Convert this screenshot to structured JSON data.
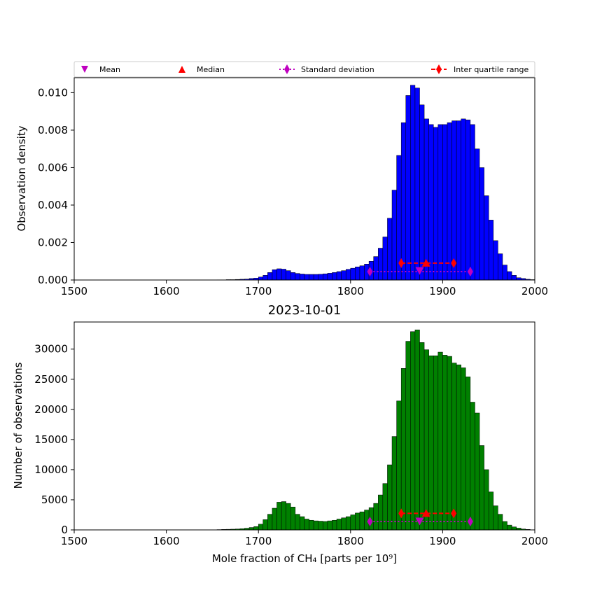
{
  "chart_data": [
    {
      "type": "bar",
      "title": "",
      "xlabel": "",
      "ylabel": "Observation density",
      "xlim": [
        1500,
        2000
      ],
      "ylim": [
        0,
        0.0108
      ],
      "xticks": [
        "1500",
        "1600",
        "1700",
        "1800",
        "1900",
        "2000"
      ],
      "yticks": [
        "0.000",
        "0.002",
        "0.004",
        "0.006",
        "0.008",
        "0.010"
      ],
      "ytick_values": [
        0,
        0.002,
        0.004,
        0.006,
        0.008,
        0.01
      ],
      "bar_color": "#0000ff",
      "bin_width": 5,
      "x": [
        1655,
        1660,
        1665,
        1670,
        1675,
        1680,
        1685,
        1690,
        1695,
        1700,
        1705,
        1710,
        1715,
        1720,
        1725,
        1730,
        1735,
        1740,
        1745,
        1750,
        1755,
        1760,
        1765,
        1770,
        1775,
        1780,
        1785,
        1790,
        1795,
        1800,
        1805,
        1810,
        1815,
        1820,
        1825,
        1830,
        1835,
        1840,
        1845,
        1850,
        1855,
        1860,
        1865,
        1870,
        1875,
        1880,
        1885,
        1890,
        1895,
        1900,
        1905,
        1910,
        1915,
        1920,
        1925,
        1930,
        1935,
        1940,
        1945,
        1950,
        1955,
        1960,
        1965,
        1970,
        1975,
        1980,
        1985,
        1990,
        1995
      ],
      "values": [
        1e-05,
        1e-05,
        2e-05,
        2e-05,
        3e-05,
        4e-05,
        5e-05,
        8e-05,
        0.0001,
        0.00016,
        0.00025,
        0.0004,
        0.00055,
        0.0006,
        0.00058,
        0.0005,
        0.0004,
        0.00035,
        0.00032,
        0.0003,
        0.0003,
        0.0003,
        0.00031,
        0.00033,
        0.00036,
        0.0004,
        0.00045,
        0.0005,
        0.00057,
        0.00063,
        0.0007,
        0.00076,
        0.00085,
        0.001,
        0.00125,
        0.0017,
        0.0023,
        0.0033,
        0.0048,
        0.00665,
        0.0084,
        0.00985,
        0.0104,
        0.01025,
        0.00935,
        0.0086,
        0.0083,
        0.00815,
        0.0083,
        0.0083,
        0.0084,
        0.0085,
        0.0085,
        0.0086,
        0.00855,
        0.0083,
        0.007,
        0.006,
        0.0045,
        0.0032,
        0.0021,
        0.0014,
        0.0008,
        0.00045,
        0.00025,
        0.00012,
        8e-05,
        4e-05,
        2e-05
      ],
      "markers": {
        "mean": {
          "x": 1875,
          "y": 0.0005
        },
        "median": {
          "x": 1882,
          "y": 0.0009
        },
        "std": {
          "x": [
            1821,
            1930
          ],
          "y": 0.00045
        },
        "iqr": {
          "x": [
            1855,
            1912
          ],
          "y": 0.0009
        }
      }
    },
    {
      "type": "bar",
      "title": "2023-10-01",
      "xlabel": "Mole fraction of CH₄ [parts per 10⁹]",
      "ylabel": "Number of observations",
      "xlim": [
        1500,
        2000
      ],
      "ylim": [
        0,
        34500
      ],
      "xticks": [
        "1500",
        "1600",
        "1700",
        "1800",
        "1900",
        "2000"
      ],
      "yticks": [
        "0",
        "5000",
        "10000",
        "15000",
        "20000",
        "25000",
        "30000"
      ],
      "ytick_values": [
        0,
        5000,
        10000,
        15000,
        20000,
        25000,
        30000
      ],
      "bar_color": "#008000",
      "bin_width": 5,
      "x": [
        1655,
        1660,
        1665,
        1670,
        1675,
        1680,
        1685,
        1690,
        1695,
        1700,
        1705,
        1710,
        1715,
        1720,
        1725,
        1730,
        1735,
        1740,
        1745,
        1750,
        1755,
        1760,
        1765,
        1770,
        1775,
        1780,
        1785,
        1790,
        1795,
        1800,
        1805,
        1810,
        1815,
        1820,
        1825,
        1830,
        1835,
        1840,
        1845,
        1850,
        1855,
        1860,
        1865,
        1870,
        1875,
        1880,
        1885,
        1890,
        1895,
        1900,
        1905,
        1910,
        1915,
        1920,
        1925,
        1930,
        1935,
        1940,
        1945,
        1950,
        1955,
        1960,
        1965,
        1970,
        1975,
        1980,
        1985,
        1990,
        1995
      ],
      "values": [
        50,
        80,
        100,
        120,
        150,
        200,
        280,
        400,
        550,
        950,
        1700,
        2600,
        3600,
        4600,
        4700,
        4400,
        3800,
        2600,
        2200,
        1800,
        1600,
        1500,
        1450,
        1400,
        1500,
        1600,
        1800,
        2000,
        2200,
        2500,
        2800,
        3000,
        3300,
        3700,
        4400,
        5800,
        7700,
        10800,
        15500,
        21400,
        26800,
        31300,
        32900,
        33200,
        31100,
        29900,
        28900,
        28900,
        29500,
        29000,
        28800,
        27700,
        27400,
        26900,
        25400,
        21200,
        19400,
        14000,
        10000,
        6300,
        4000,
        2600,
        1400,
        800,
        500,
        300,
        150,
        80,
        30
      ],
      "markers": {
        "mean": {
          "x": 1875,
          "y": 1450
        },
        "median": {
          "x": 1882,
          "y": 2750
        },
        "std": {
          "x": [
            1821,
            1930
          ],
          "y": 1400
        },
        "iqr": {
          "x": [
            1855,
            1912
          ],
          "y": 2750
        }
      }
    }
  ],
  "legend": {
    "placement": "top",
    "items": [
      {
        "label": "Mean",
        "marker": "triangle-down",
        "color": "#bf00bf"
      },
      {
        "label": "Median",
        "marker": "triangle-up",
        "color": "#ff0000"
      },
      {
        "label": "Standard deviation",
        "marker": "diamond-dotted-line",
        "color": "#bf00bf"
      },
      {
        "label": "Inter quartile range",
        "marker": "diamond-dashed-line",
        "color": "#ff0000"
      }
    ]
  }
}
